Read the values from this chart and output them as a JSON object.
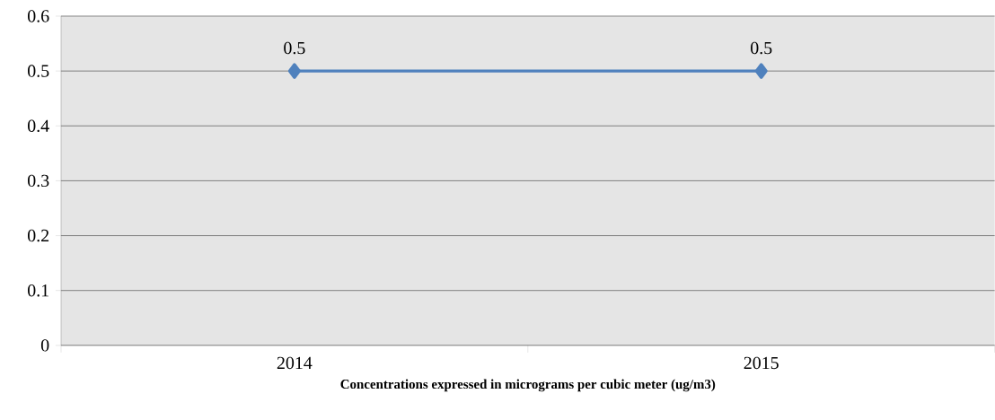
{
  "chart_data": {
    "type": "line",
    "xlabel": "Concentrations expressed in micrograms per cubic meter (ug/m3)",
    "categories": [
      "2014",
      "2015"
    ],
    "series": [
      {
        "color": "#4f81bd",
        "values": [
          0.5,
          0.5
        ]
      }
    ],
    "ylim": [
      0,
      0.6
    ],
    "yticks": [
      0,
      0.1,
      0.2,
      0.3,
      0.4,
      0.5,
      0.6
    ],
    "grid": "y",
    "marker": "diamond",
    "line_style": "solid",
    "data_labels": true
  }
}
